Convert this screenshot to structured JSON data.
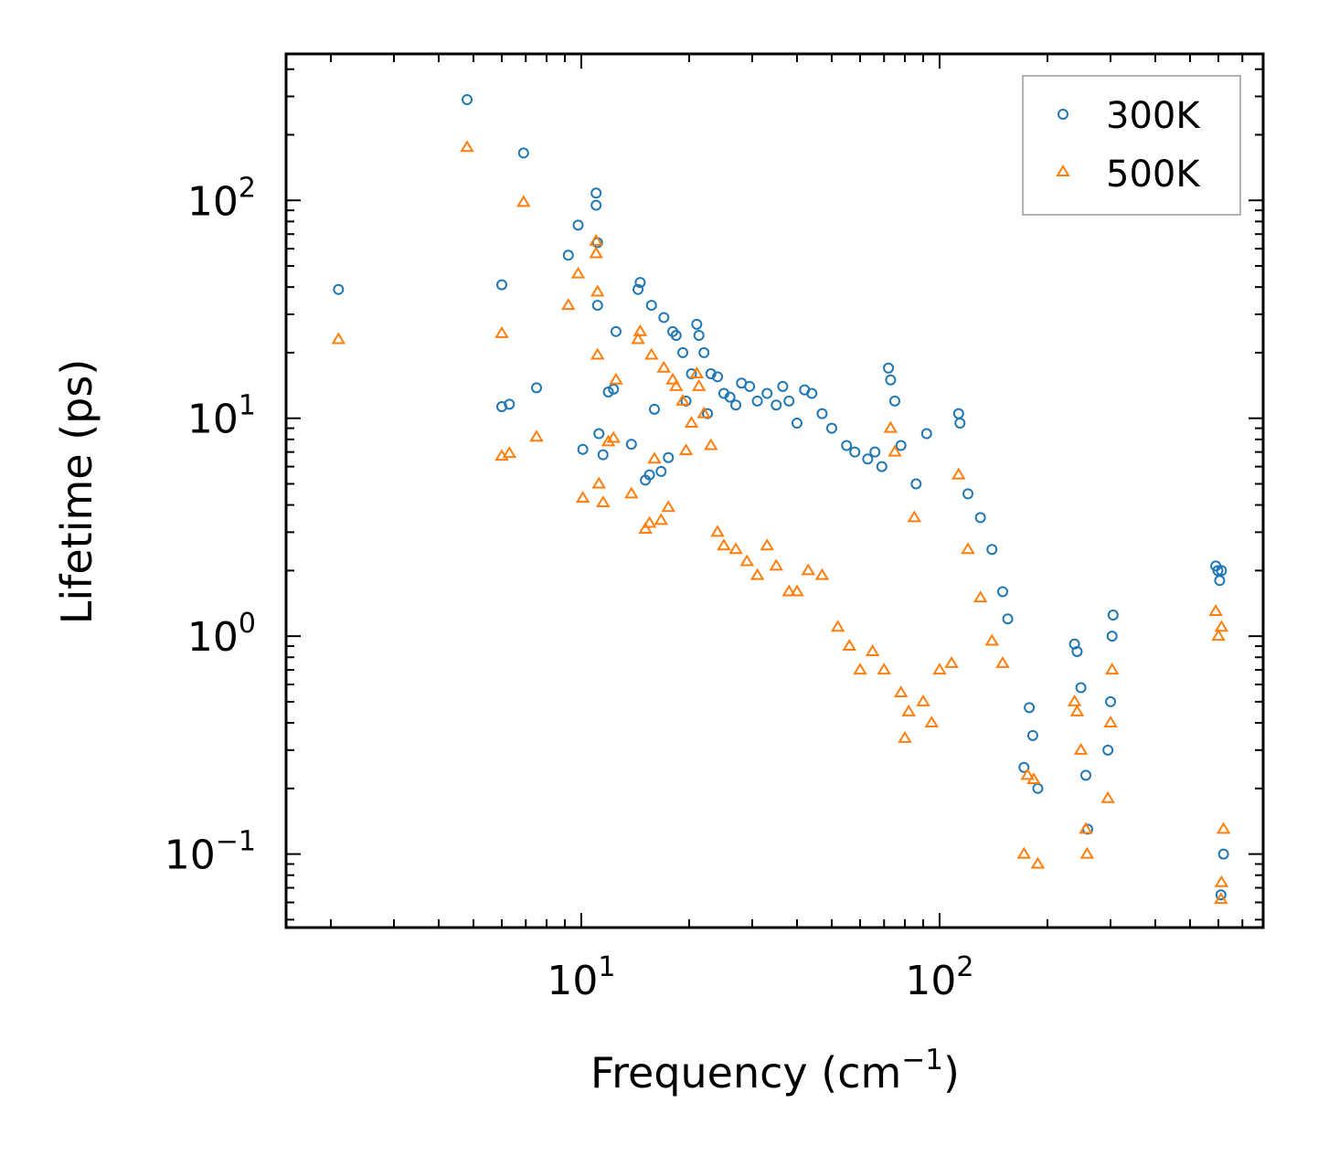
{
  "chart_data": {
    "type": "scatter",
    "title": "",
    "xlabel": "Frequency (cm",
    "xlabel_exp": "−1",
    "xlabel_close": ")",
    "ylabel": "Lifetime (ps)",
    "xscale": "log",
    "yscale": "log",
    "xlim": [
      1.5,
      800
    ],
    "ylim": [
      0.046,
      470
    ],
    "xticks": [
      {
        "base": "10",
        "exp": "1",
        "value": 10
      },
      {
        "base": "10",
        "exp": "2",
        "value": 100
      }
    ],
    "yticks": [
      {
        "base": "10",
        "exp": "−1",
        "value": 0.1
      },
      {
        "base": "10",
        "exp": "0",
        "value": 1
      },
      {
        "base": "10",
        "exp": "1",
        "value": 10
      },
      {
        "base": "10",
        "exp": "2",
        "value": 100
      }
    ],
    "legend_position": "top-right",
    "series": [
      {
        "name": "300K",
        "marker": "circle",
        "color": "#1f77b4",
        "points": [
          [
            2.1,
            39
          ],
          [
            4.8,
            290
          ],
          [
            6.0,
            41
          ],
          [
            6.0,
            11.3
          ],
          [
            6.3,
            11.6
          ],
          [
            6.9,
            165
          ],
          [
            7.5,
            13.8
          ],
          [
            9.2,
            56
          ],
          [
            9.8,
            77
          ],
          [
            10.1,
            7.2
          ],
          [
            11.0,
            108
          ],
          [
            11.0,
            95
          ],
          [
            11.1,
            64
          ],
          [
            11.1,
            33
          ],
          [
            11.2,
            8.5
          ],
          [
            11.5,
            6.8
          ],
          [
            11.9,
            13.2
          ],
          [
            12.3,
            13.6
          ],
          [
            12.5,
            25
          ],
          [
            13.8,
            7.6
          ],
          [
            14.4,
            39
          ],
          [
            14.6,
            42
          ],
          [
            15.1,
            5.2
          ],
          [
            15.5,
            5.5
          ],
          [
            15.7,
            33
          ],
          [
            16.0,
            11
          ],
          [
            16.7,
            5.7
          ],
          [
            17.0,
            29
          ],
          [
            17.5,
            6.6
          ],
          [
            18.0,
            25
          ],
          [
            18.4,
            24
          ],
          [
            19.2,
            20
          ],
          [
            19.6,
            12
          ],
          [
            20.3,
            16
          ],
          [
            21.0,
            27
          ],
          [
            21.3,
            24
          ],
          [
            22.0,
            20
          ],
          [
            22.5,
            10.5
          ],
          [
            23.0,
            16
          ],
          [
            24.0,
            15.5
          ],
          [
            25.0,
            13
          ],
          [
            26.0,
            12.5
          ],
          [
            27.0,
            11.5
          ],
          [
            28.0,
            14.5
          ],
          [
            29.5,
            14
          ],
          [
            31.0,
            12
          ],
          [
            33.0,
            13
          ],
          [
            35.0,
            11.5
          ],
          [
            36.5,
            14
          ],
          [
            38.0,
            12
          ],
          [
            40.0,
            9.5
          ],
          [
            42.0,
            13.5
          ],
          [
            44.0,
            13
          ],
          [
            47.0,
            10.5
          ],
          [
            50.0,
            9
          ],
          [
            55.0,
            7.5
          ],
          [
            58.0,
            7
          ],
          [
            63.0,
            6.5
          ],
          [
            66.0,
            7
          ],
          [
            69.0,
            6
          ],
          [
            72.0,
            17
          ],
          [
            73.0,
            15
          ],
          [
            75.0,
            12
          ],
          [
            78.0,
            7.5
          ],
          [
            86.0,
            5
          ],
          [
            92.0,
            8.5
          ],
          [
            113.0,
            10.5
          ],
          [
            114.0,
            9.5
          ],
          [
            120.0,
            4.5
          ],
          [
            130.0,
            3.5
          ],
          [
            140.0,
            2.5
          ],
          [
            150.0,
            1.6
          ],
          [
            155.0,
            1.2
          ],
          [
            172.0,
            0.25
          ],
          [
            178.0,
            0.47
          ],
          [
            182.0,
            0.35
          ],
          [
            188.0,
            0.2
          ],
          [
            238.0,
            0.92
          ],
          [
            242.0,
            0.85
          ],
          [
            248.0,
            0.58
          ],
          [
            256.0,
            0.23
          ],
          [
            259.0,
            0.13
          ],
          [
            295.0,
            0.3
          ],
          [
            300.0,
            0.5
          ],
          [
            303.0,
            1.0
          ],
          [
            305.0,
            1.25
          ],
          [
            590.0,
            2.1
          ],
          [
            598.0,
            2.0
          ],
          [
            605.0,
            1.8
          ],
          [
            612.0,
            2.0
          ],
          [
            620.0,
            0.1
          ],
          [
            610.0,
            0.065
          ]
        ]
      },
      {
        "name": "500K",
        "marker": "triangle",
        "color": "#ff7f0e",
        "points": [
          [
            2.1,
            23
          ],
          [
            4.8,
            175
          ],
          [
            6.0,
            24.5
          ],
          [
            6.0,
            6.7
          ],
          [
            6.3,
            6.9
          ],
          [
            6.9,
            98
          ],
          [
            7.5,
            8.2
          ],
          [
            9.2,
            33
          ],
          [
            9.8,
            46
          ],
          [
            10.1,
            4.3
          ],
          [
            11.0,
            65
          ],
          [
            11.0,
            57
          ],
          [
            11.1,
            38
          ],
          [
            11.1,
            19.5
          ],
          [
            11.2,
            5.0
          ],
          [
            11.5,
            4.1
          ],
          [
            11.9,
            7.8
          ],
          [
            12.3,
            8.1
          ],
          [
            12.5,
            15
          ],
          [
            13.8,
            4.5
          ],
          [
            14.4,
            23
          ],
          [
            14.6,
            25
          ],
          [
            15.1,
            3.1
          ],
          [
            15.5,
            3.3
          ],
          [
            15.7,
            19.5
          ],
          [
            16.0,
            6.5
          ],
          [
            16.7,
            3.4
          ],
          [
            17.0,
            17
          ],
          [
            17.5,
            3.9
          ],
          [
            18.0,
            15
          ],
          [
            18.4,
            14
          ],
          [
            19.2,
            12
          ],
          [
            19.6,
            7.1
          ],
          [
            20.3,
            9.5
          ],
          [
            21.0,
            16
          ],
          [
            21.3,
            14
          ],
          [
            22.0,
            10.5
          ],
          [
            23.0,
            7.5
          ],
          [
            24.0,
            3
          ],
          [
            25.0,
            2.6
          ],
          [
            27.0,
            2.5
          ],
          [
            29.0,
            2.2
          ],
          [
            31.0,
            1.9
          ],
          [
            33.0,
            2.6
          ],
          [
            35.0,
            2.1
          ],
          [
            38.0,
            1.6
          ],
          [
            40.0,
            1.6
          ],
          [
            43.0,
            2.0
          ],
          [
            47.0,
            1.9
          ],
          [
            52.0,
            1.1
          ],
          [
            56.0,
            0.9
          ],
          [
            60.0,
            0.7
          ],
          [
            65.0,
            0.85
          ],
          [
            70.0,
            0.7
          ],
          [
            73.0,
            9
          ],
          [
            75.0,
            7
          ],
          [
            78.0,
            0.55
          ],
          [
            80.0,
            0.34
          ],
          [
            82.0,
            0.45
          ],
          [
            85.0,
            3.5
          ],
          [
            90.0,
            0.5
          ],
          [
            95.0,
            0.4
          ],
          [
            100.0,
            0.7
          ],
          [
            108.0,
            0.75
          ],
          [
            113.0,
            5.5
          ],
          [
            120.0,
            2.5
          ],
          [
            130.0,
            1.5
          ],
          [
            140.0,
            0.95
          ],
          [
            150.0,
            0.75
          ],
          [
            172.0,
            0.1
          ],
          [
            176.0,
            0.23
          ],
          [
            183.0,
            0.22
          ],
          [
            188.0,
            0.09
          ],
          [
            238.0,
            0.5
          ],
          [
            242.0,
            0.45
          ],
          [
            248.0,
            0.3
          ],
          [
            256.0,
            0.13
          ],
          [
            258.0,
            0.1
          ],
          [
            295.0,
            0.18
          ],
          [
            300.0,
            0.4
          ],
          [
            303.0,
            0.7
          ],
          [
            590.0,
            1.3
          ],
          [
            600.0,
            1.0
          ],
          [
            612.0,
            1.1
          ],
          [
            620.0,
            0.13
          ],
          [
            612.0,
            0.074
          ],
          [
            610.0,
            0.062
          ]
        ]
      }
    ]
  },
  "colors": {
    "series_300K": "#1f77b4",
    "series_500K": "#ff7f0e",
    "legend_border": "#999999"
  }
}
